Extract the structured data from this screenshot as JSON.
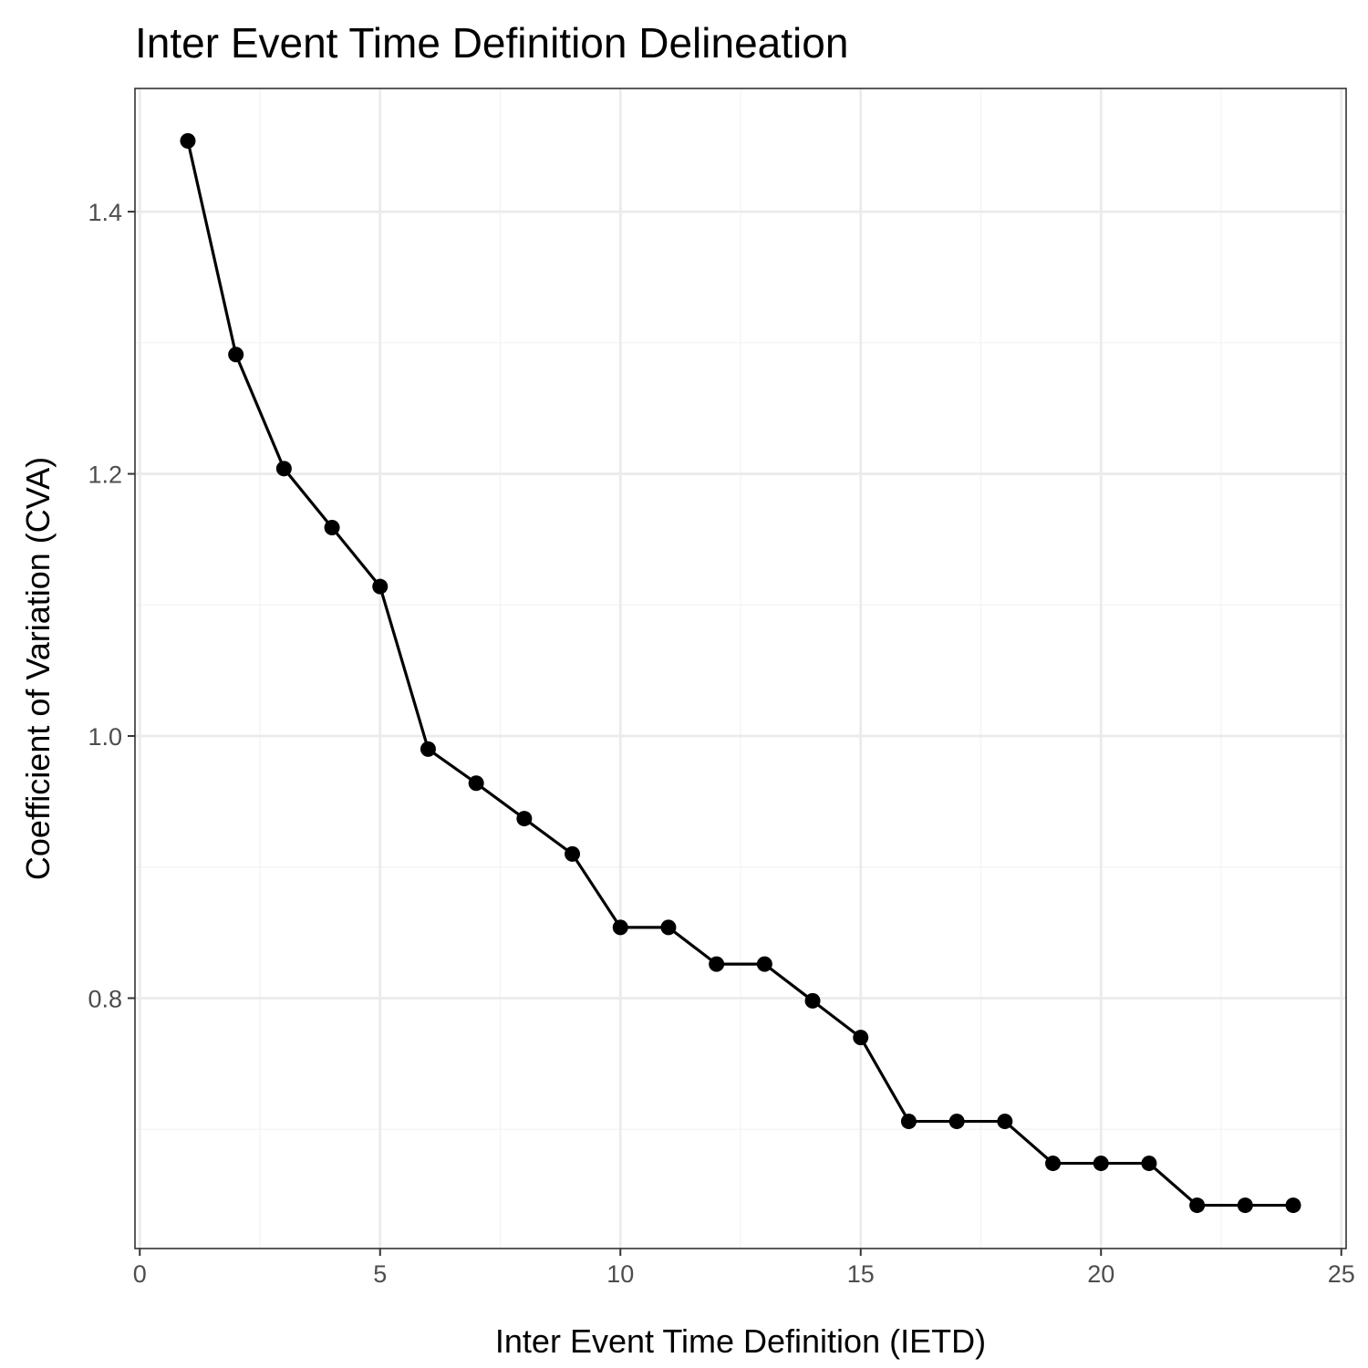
{
  "chart_data": {
    "type": "line",
    "title": "Inter Event Time Definition Delineation",
    "xlabel": "Inter Event Time Definition (IETD)",
    "ylabel": "Coefficient of Variation (CVA)",
    "x": [
      1,
      2,
      3,
      4,
      5,
      6,
      7,
      8,
      9,
      10,
      11,
      12,
      13,
      14,
      15,
      16,
      17,
      18,
      19,
      20,
      21,
      22,
      23,
      24
    ],
    "series": [
      {
        "name": "",
        "values": [
          1.454,
          1.291,
          1.204,
          1.159,
          1.114,
          0.99,
          0.964,
          0.937,
          0.91,
          0.854,
          0.854,
          0.826,
          0.826,
          0.798,
          0.77,
          0.706,
          0.706,
          0.706,
          0.674,
          0.674,
          0.674,
          0.642,
          0.642,
          0.642
        ]
      }
    ],
    "xlim": [
      -0.1,
      25.1
    ],
    "ylim": [
      0.609,
      1.494
    ],
    "xticks": [
      0,
      5,
      10,
      15,
      20,
      25
    ],
    "xtick_labels": [
      "0",
      "5",
      "10",
      "15",
      "20",
      "25"
    ],
    "yticks": [
      0.8,
      1.0,
      1.2,
      1.4
    ],
    "ytick_labels": [
      "0.8",
      "1.0",
      "1.2",
      "1.4"
    ],
    "x_minor_gridlines": [
      2.5,
      7.5,
      12.5,
      17.5,
      22.5
    ],
    "y_minor_gridlines": [
      0.7,
      0.9,
      1.1,
      1.3
    ],
    "grid": true,
    "legend": "none",
    "colors": {
      "line": "#000000",
      "points": "#000000",
      "grid_major": "#ebebeb",
      "grid_minor": "#f4f4f4",
      "panel_border": "#333333"
    }
  }
}
